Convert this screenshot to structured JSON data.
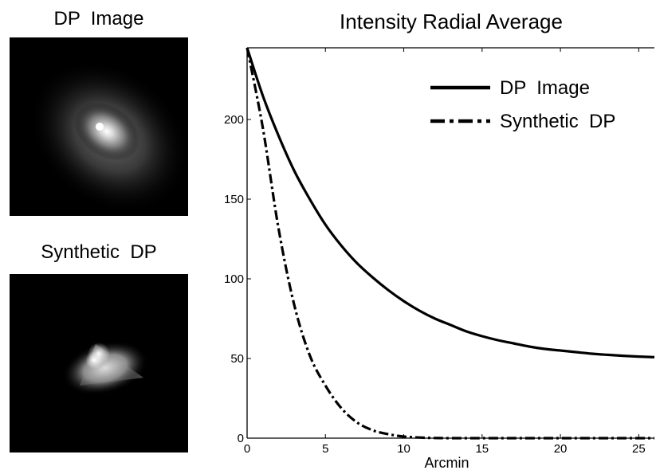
{
  "left_panels": {
    "dp_title": "DP  Image",
    "synthetic_title": "Synthetic  DP"
  },
  "chart_data": {
    "type": "line",
    "title": "Intensity Radial Average",
    "xlabel": "Arcmin",
    "ylabel": "",
    "xlim": [
      0,
      26
    ],
    "ylim": [
      0,
      245
    ],
    "x_ticks": [
      0,
      5,
      10,
      15,
      20,
      25
    ],
    "y_ticks": [
      0,
      50,
      100,
      150,
      200
    ],
    "grid": false,
    "legend_position": "top-right",
    "series": [
      {
        "name": "DP  Image",
        "style": "solid",
        "x": [
          0,
          1,
          2,
          3,
          4,
          5,
          6,
          7,
          8,
          9,
          10,
          11,
          12,
          13,
          14,
          15,
          16,
          17,
          18,
          19,
          20,
          21,
          22,
          23,
          24,
          25,
          26
        ],
        "values": [
          245,
          215,
          190,
          168,
          150,
          134,
          121,
          110,
          101,
          93,
          86,
          80,
          75,
          71,
          67,
          64,
          61.5,
          59.5,
          57.5,
          56,
          55,
          54,
          53,
          52.3,
          51.7,
          51.2,
          50.8
        ]
      },
      {
        "name": "Synthetic  DP",
        "style": "dash-dot",
        "x": [
          0,
          1,
          2,
          3,
          4,
          5,
          6,
          7,
          8,
          9,
          10,
          11,
          12,
          13,
          15,
          20,
          26
        ],
        "values": [
          245,
          195,
          132,
          84,
          52,
          33,
          19,
          10,
          5,
          2.5,
          1,
          0.4,
          0.1,
          0,
          0,
          0,
          0
        ]
      }
    ]
  },
  "colors": {
    "line": "#000000",
    "image_background": "#000000"
  }
}
